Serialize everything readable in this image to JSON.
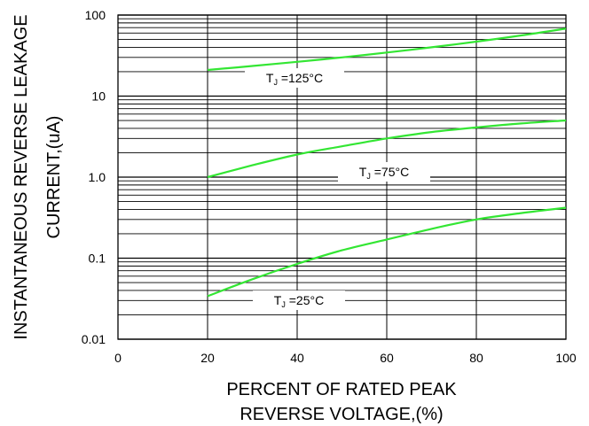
{
  "chart_data": {
    "type": "line",
    "title": "",
    "xlabel": [
      "PERCENT OF RATED PEAK",
      "REVERSE VOLTAGE,(%)"
    ],
    "ylabel": [
      "INSTANTANEOUS REVERSE LEAKAGE",
      "CURRENT,(uA)"
    ],
    "xlim": [
      0,
      100
    ],
    "ylim": [
      0.01,
      100
    ],
    "yscale": "log",
    "grid": true,
    "x_ticks": [
      0,
      20,
      40,
      60,
      80,
      100
    ],
    "x_tick_labels": [
      "0",
      "20",
      "40",
      "60",
      "80",
      "100"
    ],
    "y_ticks": [
      0.01,
      0.1,
      1.0,
      10,
      100
    ],
    "y_tick_labels": [
      "0.01",
      "0.1",
      "1.0",
      "10",
      "100"
    ],
    "colors": {
      "series": "#33e633",
      "grid": "#000000"
    },
    "series": [
      {
        "name": "TJ=125°C",
        "label_main": "T",
        "label_sub": "J",
        "label_tail": "=125°C",
        "x": [
          20,
          30,
          40,
          50,
          60,
          70,
          80,
          90,
          100
        ],
        "values": [
          21,
          23.5,
          26.5,
          30,
          34.5,
          40,
          47,
          56,
          68
        ]
      },
      {
        "name": "TJ=75°C",
        "label_main": "T",
        "label_sub": "J",
        "label_tail": "=75°C",
        "x": [
          20,
          30,
          40,
          50,
          60,
          70,
          80,
          90,
          100
        ],
        "values": [
          1.0,
          1.4,
          1.9,
          2.4,
          3.0,
          3.6,
          4.1,
          4.6,
          5.0
        ]
      },
      {
        "name": "TJ=25°C",
        "label_main": "T",
        "label_sub": "J",
        "label_tail": "=25°C",
        "x": [
          20,
          30,
          40,
          50,
          60,
          70,
          80,
          90,
          100
        ],
        "values": [
          0.034,
          0.055,
          0.085,
          0.125,
          0.17,
          0.23,
          0.3,
          0.36,
          0.42
        ]
      }
    ]
  }
}
